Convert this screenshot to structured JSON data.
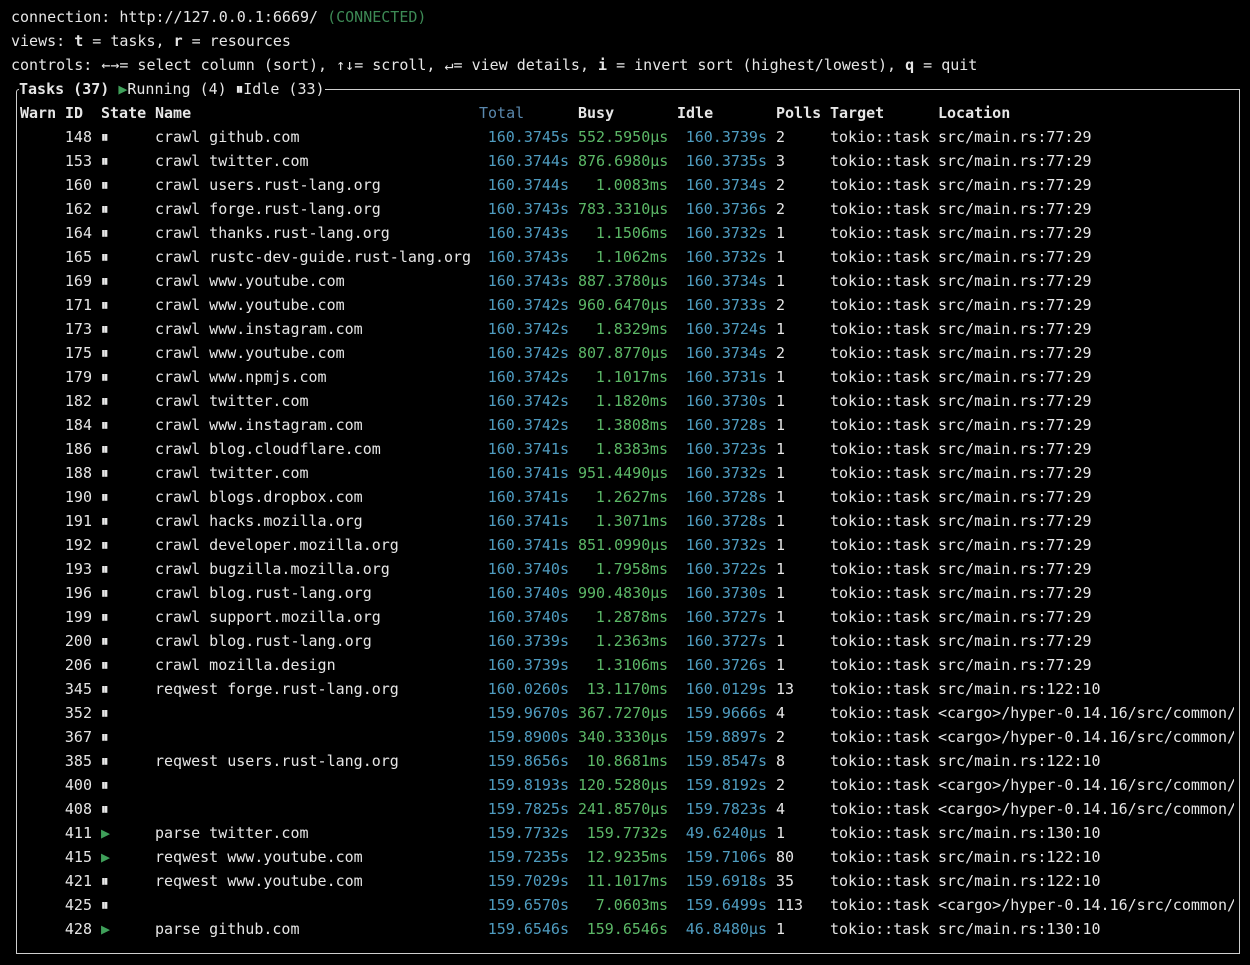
{
  "header": {
    "connection": "connection: http://127.0.0.1:6669/",
    "status": "(CONNECTED)",
    "views": [
      "views: ",
      "t",
      " = ",
      "tasks, ",
      "r",
      " = resources"
    ],
    "controls": [
      "controls: ",
      "←→",
      "= select column (sort), ",
      "↑↓",
      "= scroll, ",
      "↵",
      "= view details, ",
      "i",
      " = invert sort (highest/lowest), ",
      "q",
      " = quit"
    ]
  },
  "tasks_title": {
    "title": "Tasks (37)",
    "running_icon": "▶",
    "running": "Running (4)",
    "idle_icon": "⏸",
    "idle": "Idle (33)"
  },
  "table": {
    "columns": [
      "Warn",
      "ID",
      "State",
      "Name",
      "Total",
      "Busy",
      "Idle",
      "Polls",
      "Target",
      "Location"
    ],
    "rows": [
      [
        "148",
        "⏸",
        "crawl github.com",
        "160.3745s",
        "552.5950µs",
        "160.3739s",
        "2",
        "tokio::task",
        "src/main.rs:77:29"
      ],
      [
        "153",
        "⏸",
        "crawl twitter.com",
        "160.3744s",
        "876.6980µs",
        "160.3735s",
        "3",
        "tokio::task",
        "src/main.rs:77:29"
      ],
      [
        "160",
        "⏸",
        "crawl users.rust-lang.org",
        "160.3744s",
        "1.0083ms",
        "160.3734s",
        "2",
        "tokio::task",
        "src/main.rs:77:29"
      ],
      [
        "162",
        "⏸",
        "crawl forge.rust-lang.org",
        "160.3743s",
        "783.3310µs",
        "160.3736s",
        "2",
        "tokio::task",
        "src/main.rs:77:29"
      ],
      [
        "164",
        "⏸",
        "crawl thanks.rust-lang.org",
        "160.3743s",
        "1.1506ms",
        "160.3732s",
        "1",
        "tokio::task",
        "src/main.rs:77:29"
      ],
      [
        "165",
        "⏸",
        "crawl rustc-dev-guide.rust-lang.org",
        "160.3743s",
        "1.1062ms",
        "160.3732s",
        "1",
        "tokio::task",
        "src/main.rs:77:29"
      ],
      [
        "169",
        "⏸",
        "crawl www.youtube.com",
        "160.3743s",
        "887.3780µs",
        "160.3734s",
        "1",
        "tokio::task",
        "src/main.rs:77:29"
      ],
      [
        "171",
        "⏸",
        "crawl www.youtube.com",
        "160.3742s",
        "960.6470µs",
        "160.3733s",
        "2",
        "tokio::task",
        "src/main.rs:77:29"
      ],
      [
        "173",
        "⏸",
        "crawl www.instagram.com",
        "160.3742s",
        "1.8329ms",
        "160.3724s",
        "1",
        "tokio::task",
        "src/main.rs:77:29"
      ],
      [
        "175",
        "⏸",
        "crawl www.youtube.com",
        "160.3742s",
        "807.8770µs",
        "160.3734s",
        "2",
        "tokio::task",
        "src/main.rs:77:29"
      ],
      [
        "179",
        "⏸",
        "crawl www.npmjs.com",
        "160.3742s",
        "1.1017ms",
        "160.3731s",
        "1",
        "tokio::task",
        "src/main.rs:77:29"
      ],
      [
        "182",
        "⏸",
        "crawl twitter.com",
        "160.3742s",
        "1.1820ms",
        "160.3730s",
        "1",
        "tokio::task",
        "src/main.rs:77:29"
      ],
      [
        "184",
        "⏸",
        "crawl www.instagram.com",
        "160.3742s",
        "1.3808ms",
        "160.3728s",
        "1",
        "tokio::task",
        "src/main.rs:77:29"
      ],
      [
        "186",
        "⏸",
        "crawl blog.cloudflare.com",
        "160.3741s",
        "1.8383ms",
        "160.3723s",
        "1",
        "tokio::task",
        "src/main.rs:77:29"
      ],
      [
        "188",
        "⏸",
        "crawl twitter.com",
        "160.3741s",
        "951.4490µs",
        "160.3732s",
        "1",
        "tokio::task",
        "src/main.rs:77:29"
      ],
      [
        "190",
        "⏸",
        "crawl blogs.dropbox.com",
        "160.3741s",
        "1.2627ms",
        "160.3728s",
        "1",
        "tokio::task",
        "src/main.rs:77:29"
      ],
      [
        "191",
        "⏸",
        "crawl hacks.mozilla.org",
        "160.3741s",
        "1.3071ms",
        "160.3728s",
        "1",
        "tokio::task",
        "src/main.rs:77:29"
      ],
      [
        "192",
        "⏸",
        "crawl developer.mozilla.org",
        "160.3741s",
        "851.0990µs",
        "160.3732s",
        "1",
        "tokio::task",
        "src/main.rs:77:29"
      ],
      [
        "193",
        "⏸",
        "crawl bugzilla.mozilla.org",
        "160.3740s",
        "1.7958ms",
        "160.3722s",
        "1",
        "tokio::task",
        "src/main.rs:77:29"
      ],
      [
        "196",
        "⏸",
        "crawl blog.rust-lang.org",
        "160.3740s",
        "990.4830µs",
        "160.3730s",
        "1",
        "tokio::task",
        "src/main.rs:77:29"
      ],
      [
        "199",
        "⏸",
        "crawl support.mozilla.org",
        "160.3740s",
        "1.2878ms",
        "160.3727s",
        "1",
        "tokio::task",
        "src/main.rs:77:29"
      ],
      [
        "200",
        "⏸",
        "crawl blog.rust-lang.org",
        "160.3739s",
        "1.2363ms",
        "160.3727s",
        "1",
        "tokio::task",
        "src/main.rs:77:29"
      ],
      [
        "206",
        "⏸",
        "crawl mozilla.design",
        "160.3739s",
        "1.3106ms",
        "160.3726s",
        "1",
        "tokio::task",
        "src/main.rs:77:29"
      ],
      [
        "345",
        "⏸",
        "reqwest forge.rust-lang.org",
        "160.0260s",
        "13.1170ms",
        "160.0129s",
        "13",
        "tokio::task",
        "src/main.rs:122:10"
      ],
      [
        "352",
        "⏸",
        null,
        "159.9670s",
        "367.7270µs",
        "159.9666s",
        "4",
        "tokio::task",
        "<cargo>/hyper-0.14.16/src/common/"
      ],
      [
        "367",
        "⏸",
        null,
        "159.8900s",
        "340.3330µs",
        "159.8897s",
        "2",
        "tokio::task",
        "<cargo>/hyper-0.14.16/src/common/"
      ],
      [
        "385",
        "⏸",
        "reqwest users.rust-lang.org",
        "159.8656s",
        "10.8681ms",
        "159.8547s",
        "8",
        "tokio::task",
        "src/main.rs:122:10"
      ],
      [
        "400",
        "⏸",
        null,
        "159.8193s",
        "120.5280µs",
        "159.8192s",
        "2",
        "tokio::task",
        "<cargo>/hyper-0.14.16/src/common/"
      ],
      [
        "408",
        "⏸",
        null,
        "159.7825s",
        "241.8570µs",
        "159.7823s",
        "4",
        "tokio::task",
        "<cargo>/hyper-0.14.16/src/common/"
      ],
      [
        "411",
        "▶",
        "parse twitter.com",
        "159.7732s",
        "159.7732s",
        "49.6240µs",
        "1",
        "tokio::task",
        "src/main.rs:130:10"
      ],
      [
        "415",
        "▶",
        "reqwest www.youtube.com",
        "159.7235s",
        "12.9235ms",
        "159.7106s",
        "80",
        "tokio::task",
        "src/main.rs:122:10"
      ],
      [
        "421",
        "⏸",
        "reqwest www.youtube.com",
        "159.7029s",
        "11.1017ms",
        "159.6918s",
        "35",
        "tokio::task",
        "src/main.rs:122:10"
      ],
      [
        "425",
        "⏸",
        null,
        "159.6570s",
        "7.0603ms",
        "159.6499s",
        "113",
        "tokio::task",
        "<cargo>/hyper-0.14.16/src/common/"
      ],
      [
        "428",
        "▶",
        "parse github.com",
        "159.6546s",
        "159.6546s",
        "46.8480µs",
        "1",
        "tokio::task",
        "src/main.rs:130:10"
      ]
    ]
  }
}
